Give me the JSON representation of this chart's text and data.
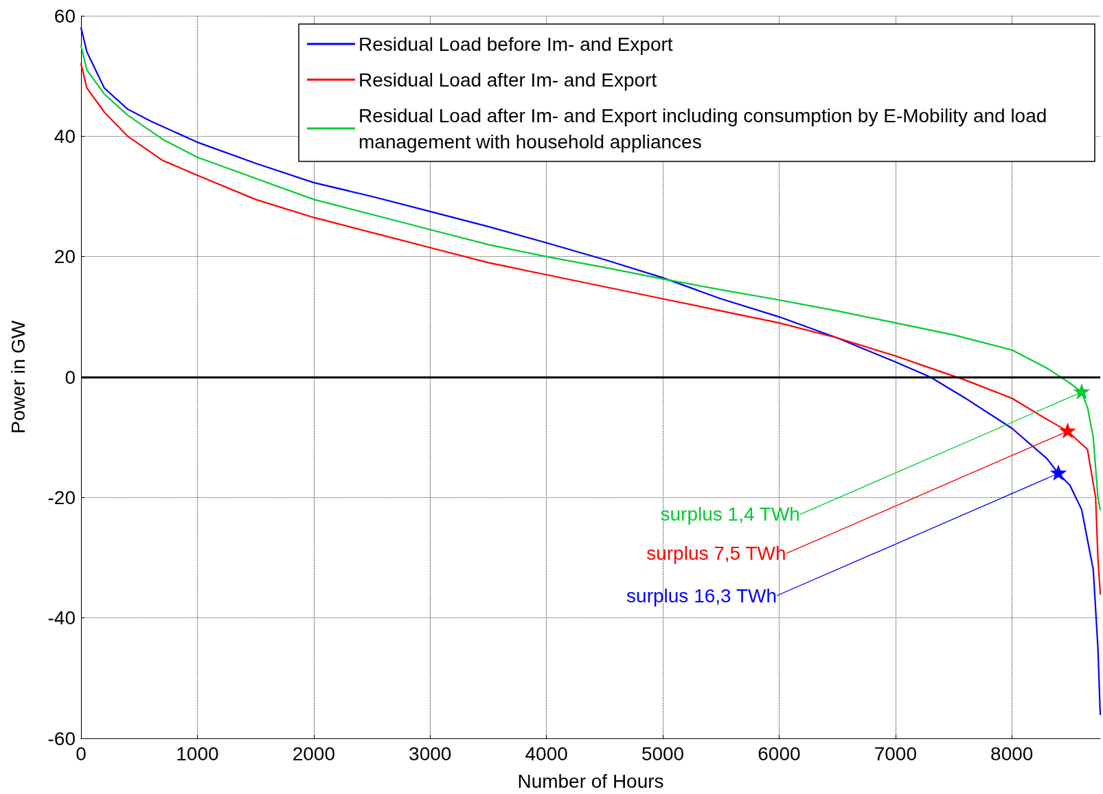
{
  "chart_data": {
    "type": "line",
    "xlabel": "Number of Hours",
    "ylabel": "Power in GW",
    "xlim": [
      0,
      8760
    ],
    "xticks": [
      0,
      1000,
      2000,
      3000,
      4000,
      5000,
      6000,
      7000,
      8000
    ],
    "ylim": [
      -60,
      60
    ],
    "yticks": [
      -60,
      -40,
      -20,
      0,
      20,
      40,
      60
    ],
    "grid": true,
    "legend": "top right",
    "marker": "none",
    "line_style": "solid",
    "ref_lines": [
      {
        "axis": "y",
        "value": 0,
        "color": "#000000"
      }
    ],
    "series": [
      {
        "name": "Residual Load before Im- and Export",
        "color": "#0000ff",
        "x": [
          0,
          50,
          200,
          400,
          600,
          1000,
          1500,
          2000,
          2500,
          3000,
          3500,
          4000,
          4500,
          5000,
          5500,
          6000,
          6500,
          7000,
          7300,
          7600,
          8000,
          8300,
          8400,
          8500,
          8600,
          8700,
          8740,
          8760
        ],
        "values": [
          58,
          54,
          48,
          44.5,
          42.5,
          39,
          35.5,
          32.3,
          30,
          27.5,
          25,
          22.3,
          19.5,
          16.5,
          13,
          10,
          6.5,
          2.5,
          0,
          -3.5,
          -8.5,
          -13.5,
          -16,
          -18,
          -22,
          -32,
          -45,
          -56
        ]
      },
      {
        "name": "Residual Load after Im- and Export",
        "color": "#ff0000",
        "x": [
          0,
          50,
          200,
          400,
          700,
          1000,
          1500,
          2000,
          2500,
          3000,
          3500,
          4000,
          4500,
          5000,
          5500,
          6000,
          6500,
          7000,
          7300,
          7600,
          8000,
          8300,
          8480,
          8650,
          8720,
          8740,
          8760
        ],
        "values": [
          52,
          48,
          44,
          40,
          36,
          33.5,
          29.5,
          26.5,
          24,
          21.5,
          19,
          17,
          15,
          13,
          11,
          9,
          6.5,
          3.5,
          1.5,
          -0.5,
          -3.5,
          -7,
          -9,
          -12,
          -20,
          -30,
          -36
        ]
      },
      {
        "name": "Residual Load after Im- and Export including consumption by E-Mobility and load management with household appliances",
        "color": "#00cc33",
        "x": [
          0,
          50,
          200,
          400,
          700,
          1000,
          1500,
          2000,
          2500,
          3000,
          3500,
          4000,
          4500,
          5000,
          5500,
          6000,
          6500,
          7000,
          7500,
          8000,
          8300,
          8500,
          8600,
          8650,
          8700,
          8740,
          8760
        ],
        "values": [
          55,
          51,
          47,
          43.5,
          39.5,
          36.5,
          33,
          29.5,
          27,
          24.5,
          22,
          20,
          18.2,
          16.3,
          14.5,
          12.8,
          11,
          9,
          7,
          4.5,
          1.5,
          -1,
          -2.5,
          -5,
          -10,
          -20,
          -22
        ]
      }
    ],
    "annotations": [
      {
        "text": "surplus 16,3 TWh",
        "x": 8400,
        "y": -16
      },
      {
        "text": "surplus 7,5 TWh",
        "x": 8480,
        "y": -9
      },
      {
        "text": "surplus 1,4 TWh",
        "x": 8600,
        "y": -2.5
      }
    ]
  }
}
